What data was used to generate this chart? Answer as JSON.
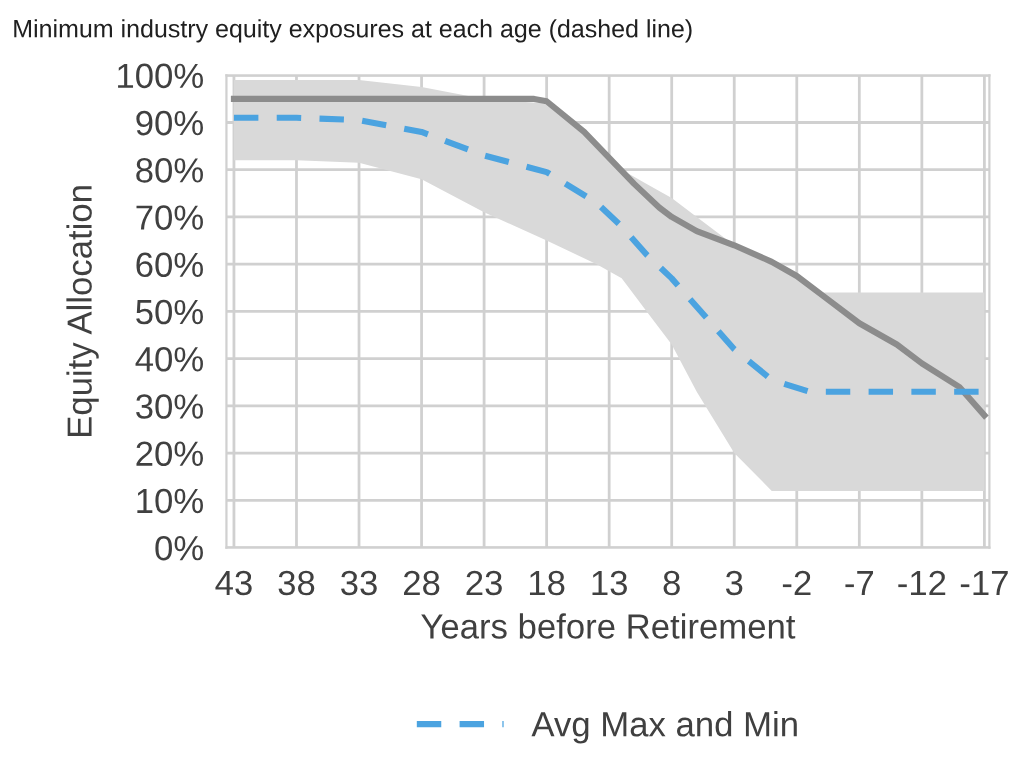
{
  "chart_data": {
    "type": "line",
    "title": "Minimum industry equity exposures at each age (dashed line)",
    "xlabel": "Years before Retirement",
    "ylabel": "Equity Allocation",
    "xlim": [
      43.6,
      -17.4
    ],
    "xticks": [
      43,
      38,
      33,
      28,
      23,
      18,
      13,
      8,
      3,
      -2,
      -7,
      -12,
      -17
    ],
    "ylim": [
      0,
      100
    ],
    "yticks": [
      {
        "value": 0,
        "label": "0%"
      },
      {
        "value": 10,
        "label": "10%"
      },
      {
        "value": 20,
        "label": "20%"
      },
      {
        "value": 30,
        "label": "30%"
      },
      {
        "value": 40,
        "label": "40%"
      },
      {
        "value": 50,
        "label": "50%"
      },
      {
        "value": 60,
        "label": "60%"
      },
      {
        "value": 70,
        "label": "70%"
      },
      {
        "value": 80,
        "label": "80%"
      },
      {
        "value": 90,
        "label": "90%"
      },
      {
        "value": 100,
        "label": "100%"
      }
    ],
    "grid": true,
    "legend": "bottom",
    "series": [
      {
        "color": "#8c8c8c",
        "line_style": "solid",
        "x": [
          43,
          19,
          18,
          15,
          13,
          11,
          9,
          8,
          6,
          3,
          0,
          -2,
          -4,
          -7,
          -10,
          -12,
          -15,
          -17
        ],
        "values": [
          95,
          95,
          94.5,
          88,
          82.5,
          77,
          72,
          70,
          67,
          64,
          60.5,
          57.5,
          53.5,
          47.5,
          43,
          39,
          34,
          28
        ]
      },
      {
        "name": "Avg Max and Min",
        "color": "#4ba3e0",
        "line_style": "dashed",
        "x": [
          43,
          38,
          33,
          28,
          23,
          18,
          14,
          12,
          10,
          8,
          6,
          3,
          0,
          -3,
          -4,
          -7,
          -12,
          -17
        ],
        "values": [
          91,
          91,
          90.5,
          88,
          83,
          79.5,
          73,
          68,
          62,
          57,
          51,
          42,
          35.5,
          33,
          33,
          33,
          33,
          33
        ],
        "lower": [
          82,
          82,
          81.5,
          78,
          71,
          65,
          60,
          57,
          50,
          43,
          33,
          20,
          12,
          12,
          12,
          12,
          12,
          12
        ],
        "upper": [
          99,
          99,
          99,
          97.5,
          95,
          94,
          85,
          80,
          77,
          74,
          70,
          64,
          60,
          56,
          54,
          54,
          54,
          54
        ]
      }
    ]
  }
}
